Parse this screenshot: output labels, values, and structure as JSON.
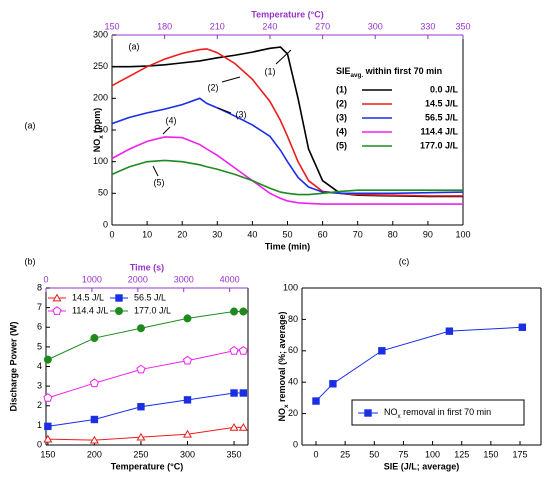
{
  "chart_data": [
    {
      "type": "line",
      "panel_label": "(a)",
      "x_label": "Time (min)",
      "x2_label": "Temperature (°C)",
      "y_label": [
        "NO",
        "x",
        " (ppm)"
      ],
      "legend_title": [
        "SIE",
        "avg.",
        " within first 70 min"
      ],
      "xlim": [
        0,
        100
      ],
      "xticks": [
        0,
        10,
        20,
        30,
        40,
        50,
        60,
        70,
        80,
        90,
        100
      ],
      "x2lim": [
        150,
        350
      ],
      "x2ticks": [
        150,
        180,
        210,
        240,
        270,
        300,
        330,
        350
      ],
      "ylim": [
        0,
        300
      ],
      "yticks": [
        0,
        50,
        100,
        150,
        200,
        250,
        300
      ],
      "x": [
        0,
        5,
        10,
        15,
        20,
        25,
        27,
        30,
        35,
        40,
        45,
        48,
        50,
        53,
        56,
        60,
        65,
        70,
        80,
        90,
        100
      ],
      "series": [
        {
          "name": "0.0 J/L",
          "label": "(1)",
          "color": "#000000",
          "values": [
            250,
            250,
            251,
            253,
            256,
            259,
            261,
            264,
            268,
            273,
            279,
            281,
            270,
            200,
            120,
            70,
            50,
            47,
            46,
            45,
            45
          ]
        },
        {
          "name": "14.5 J/L",
          "label": "(2)",
          "color": "#ee1c1c",
          "values": [
            220,
            235,
            250,
            262,
            271,
            277,
            278,
            272,
            255,
            230,
            195,
            165,
            140,
            100,
            70,
            53,
            50,
            48,
            47,
            46,
            46
          ]
        },
        {
          "name": "56.5 J/L",
          "label": "(3)",
          "color": "#1a2ee6",
          "values": [
            160,
            170,
            177,
            183,
            190,
            200,
            192,
            185,
            172,
            158,
            140,
            118,
            100,
            75,
            60,
            52,
            50,
            50,
            50,
            51,
            52
          ]
        },
        {
          "name": "114.4 J/L",
          "label": "(4)",
          "color": "#ee22ee",
          "values": [
            105,
            120,
            132,
            139,
            138,
            127,
            120,
            110,
            90,
            70,
            50,
            42,
            38,
            35,
            34,
            33,
            33,
            33,
            33,
            33,
            33
          ]
        },
        {
          "name": "177.0 J/L",
          "label": "(5)",
          "color": "#1e8a1e",
          "values": [
            80,
            92,
            100,
            102,
            100,
            95,
            92,
            88,
            80,
            70,
            58,
            52,
            50,
            48,
            48,
            50,
            53,
            55,
            55,
            55,
            55
          ]
        }
      ]
    },
    {
      "type": "line",
      "panel_label": "(b)",
      "x_label": "Temperature (°C)",
      "x2_label": "Time (s)",
      "y_label": "Discharge Power (W)",
      "xlim": [
        148,
        365
      ],
      "xticks": [
        150,
        200,
        250,
        300,
        350
      ],
      "x2lim": [
        0,
        4400
      ],
      "x2ticks": [
        0,
        1000,
        2000,
        3000,
        4000
      ],
      "ylim": [
        0,
        8
      ],
      "yticks": [
        0,
        1,
        2,
        3,
        4,
        5,
        6,
        7,
        8
      ],
      "x": [
        150,
        200,
        250,
        300,
        350,
        360
      ],
      "series": [
        {
          "name": "14.5 J/L",
          "color": "#ee1c1c",
          "marker": "triangle",
          "filled": false,
          "values": [
            0.3,
            0.25,
            0.4,
            0.55,
            0.9,
            0.9
          ]
        },
        {
          "name": "56.5 J/L",
          "color": "#1a2ee6",
          "marker": "square",
          "filled": true,
          "values": [
            0.95,
            1.3,
            1.95,
            2.3,
            2.65,
            2.65
          ]
        },
        {
          "name": "114.4 J/L",
          "color": "#ee22ee",
          "marker": "pentagon",
          "filled": false,
          "values": [
            2.4,
            3.15,
            3.85,
            4.3,
            4.8,
            4.8
          ]
        },
        {
          "name": "177.0 J/L",
          "color": "#1e8a1e",
          "marker": "circle",
          "filled": true,
          "values": [
            4.35,
            5.45,
            5.95,
            6.45,
            6.8,
            6.8
          ]
        }
      ]
    },
    {
      "type": "line",
      "panel_label": "(c)",
      "x_label": "SIE (J/L; average)",
      "y_label": [
        "NO",
        "x",
        " removal (%; average)"
      ],
      "xlim": [
        -12,
        193
      ],
      "xticks": [
        0,
        25,
        50,
        75,
        100,
        125,
        150,
        175
      ],
      "ylim": [
        0,
        100
      ],
      "yticks": [
        0,
        20,
        40,
        60,
        80,
        100
      ],
      "x": [
        0,
        14.5,
        56.5,
        114.4,
        177.0
      ],
      "series": [
        {
          "name": [
            "NO",
            "x",
            " removal in first 70 min"
          ],
          "color": "#1a2ee6",
          "marker": "square",
          "filled": true,
          "values": [
            28,
            39,
            60,
            72.5,
            75
          ]
        }
      ]
    }
  ]
}
